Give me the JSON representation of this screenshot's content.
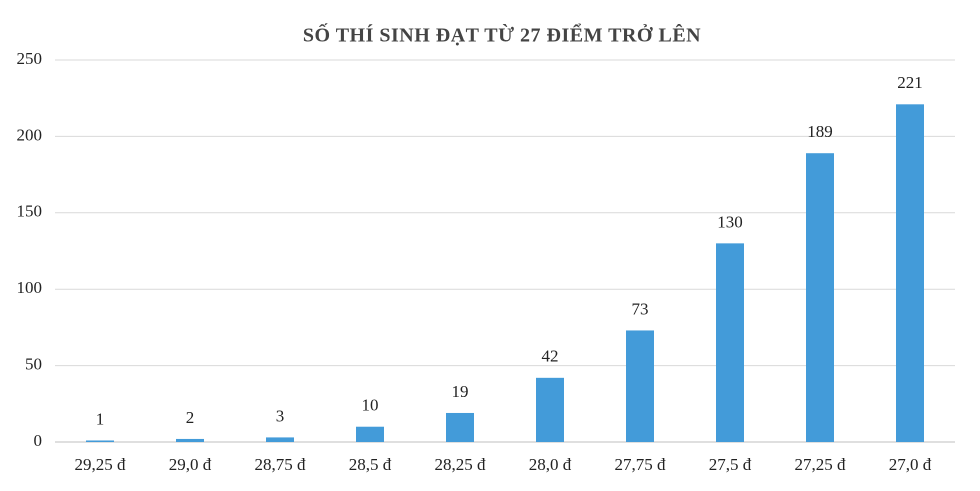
{
  "chart_data": {
    "type": "bar",
    "title": "SỐ THÍ SINH ĐẠT TỪ 27 ĐIỂM TRỞ LÊN",
    "categories": [
      "29,25 đ",
      "29,0 đ",
      "28,75 đ",
      "28,5 đ",
      "28,25 đ",
      "28,0 đ",
      "27,75 đ",
      "27,5 đ",
      "27,25 đ",
      "27,0 đ"
    ],
    "values": [
      1,
      2,
      3,
      10,
      19,
      42,
      73,
      130,
      189,
      221
    ],
    "color": "#439bd9",
    "ylim": [
      0,
      250
    ],
    "yticks": [
      0,
      50,
      100,
      150,
      200,
      250
    ],
    "grid": true
  }
}
